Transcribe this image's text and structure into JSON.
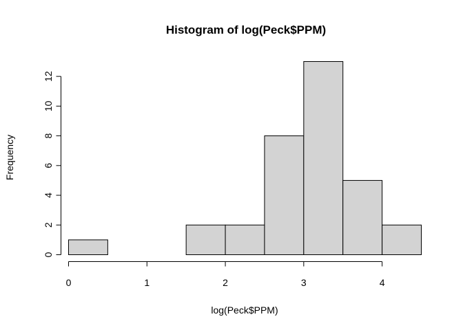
{
  "chart_data": {
    "type": "bar",
    "title": "Histogram of log(Peck$PPM)",
    "xlabel": "log(Peck$PPM)",
    "ylabel": "Frequency",
    "bin_edges": [
      0,
      0.5,
      1,
      1.5,
      2,
      2.5,
      3,
      3.5,
      4,
      4.5
    ],
    "values": [
      1,
      0,
      0,
      2,
      2,
      8,
      13,
      5,
      2
    ],
    "xlim": [
      0,
      4.5
    ],
    "ylim": [
      0,
      13
    ],
    "x_ticks": [
      0,
      1,
      2,
      3,
      4
    ],
    "x_tick_labels": [
      "0",
      "1",
      "2",
      "3",
      "4"
    ],
    "y_ticks": [
      0,
      2,
      4,
      6,
      8,
      10,
      12
    ],
    "y_tick_labels": [
      "0",
      "2",
      "4",
      "6",
      "8",
      "10",
      "12"
    ],
    "grid": false,
    "legend": "none",
    "bar_color": "#d3d3d3",
    "edge_color": "#000000"
  }
}
